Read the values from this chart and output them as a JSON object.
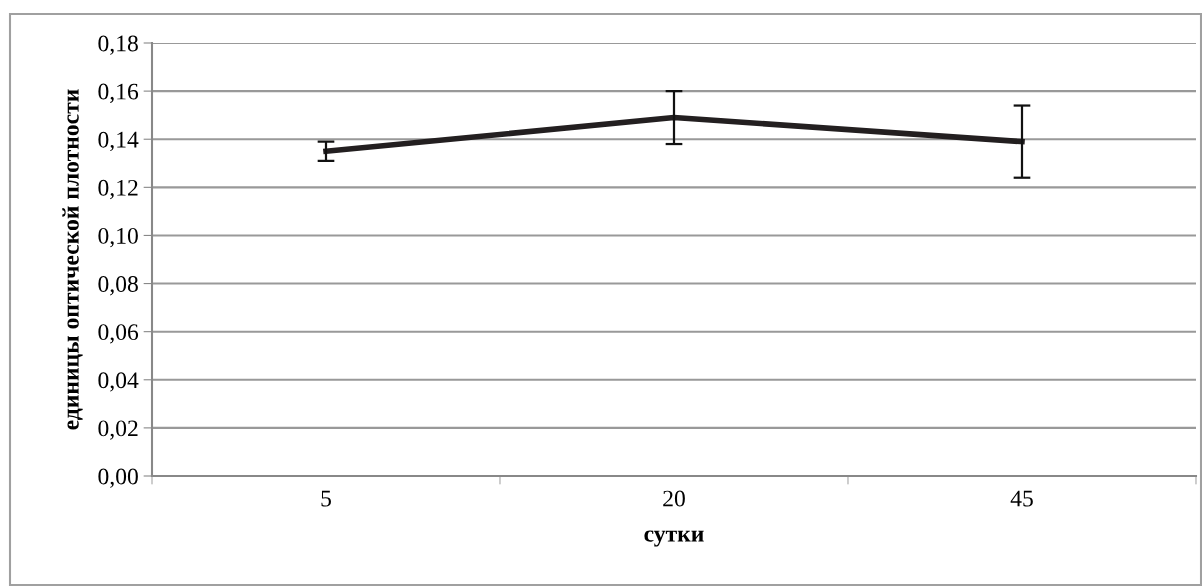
{
  "chart_data": {
    "type": "line",
    "xlabel": "сутки",
    "ylabel": "единицы оптической плотности",
    "categories": [
      "5",
      "20",
      "45"
    ],
    "series": [
      {
        "color": "#231f20",
        "values": [
          0.135,
          0.149,
          0.139
        ],
        "errors": [
          0.004,
          0.011,
          0.015
        ]
      }
    ],
    "ylim": [
      0,
      0.18
    ],
    "yticks": [
      {
        "value": 0,
        "label": "0,00"
      },
      {
        "value": 0.02,
        "label": "0,02"
      },
      {
        "value": 0.04,
        "label": "0,04"
      },
      {
        "value": 0.06,
        "label": "0,06"
      },
      {
        "value": 0.08,
        "label": "0,08"
      },
      {
        "value": 0.1,
        "label": "0,10"
      },
      {
        "value": 0.12,
        "label": "0,12"
      },
      {
        "value": 0.14,
        "label": "0,14"
      },
      {
        "value": 0.16,
        "label": "0,16"
      },
      {
        "value": 0.18,
        "label": "0,18"
      }
    ],
    "grid": "y",
    "marker": "none",
    "line_style": "solid"
  }
}
